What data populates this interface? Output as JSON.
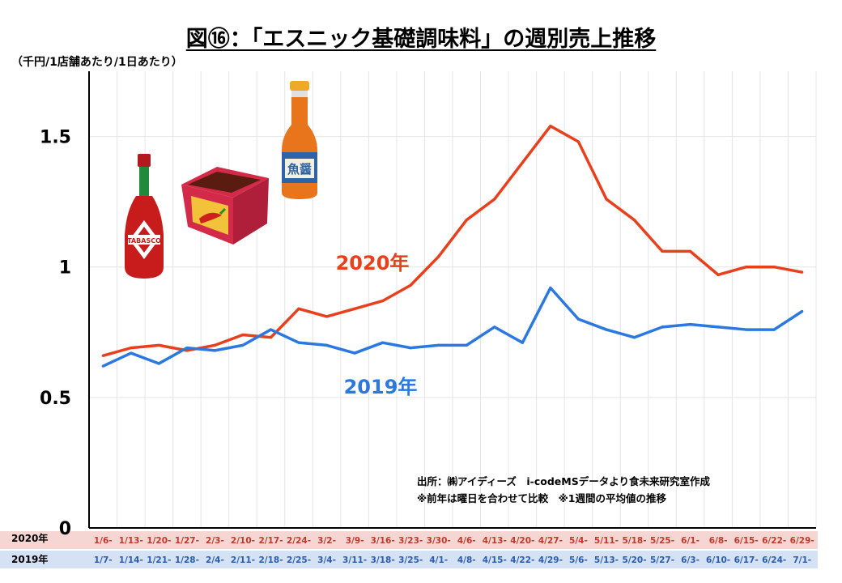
{
  "title": "図⑯：「エスニック基礎調味料」の週別売上推移",
  "unit_label": "（千円/1店舗あたり/1日あたり）",
  "source_note": "出所：㈱アイディーズ　i-codeMSデータより食未来研究室作成",
  "sub_note": "※前年は曜日を合わせて比較　※1週間の平均値の推移",
  "row_label_2020": "2020年",
  "row_label_2019": "2019年",
  "colors": {
    "series_2020": "#e8401c",
    "series_2019": "#2a78e0",
    "row_2020_bg": "#f6d6d3",
    "row_2019_bg": "#d5e1f5",
    "row_2020_text": "#c0392b",
    "row_2019_text": "#2a5db0"
  },
  "icons": [
    "tabasco-bottle-icon",
    "chili-paste-box-icon",
    "fish-sauce-bottle-icon"
  ],
  "chart_data": {
    "type": "line",
    "title": "図⑯：「エスニック基礎調味料」の週別売上推移",
    "ylabel": "（千円/1店舗あたり/1日あたり）",
    "ylim": [
      0,
      1.75
    ],
    "yticks": [
      0,
      0.5,
      1,
      1.5
    ],
    "ytick_labels": [
      "0",
      "0.5",
      "1",
      "1.5"
    ],
    "grid": true,
    "x_2020": [
      "1/6-",
      "1/13-",
      "1/20-",
      "1/27-",
      "2/3-",
      "2/10-",
      "2/17-",
      "2/24-",
      "3/2-",
      "3/9-",
      "3/16-",
      "3/23-",
      "3/30-",
      "4/6-",
      "4/13-",
      "4/20-",
      "4/27-",
      "5/4-",
      "5/11-",
      "5/18-",
      "5/25-",
      "6/1-",
      "6/8-",
      "6/15-",
      "6/22-",
      "6/29-"
    ],
    "x_2019": [
      "1/7-",
      "1/14-",
      "1/21-",
      "1/28-",
      "2/4-",
      "2/11-",
      "2/18-",
      "2/25-",
      "3/4-",
      "3/11-",
      "3/18-",
      "3/25-",
      "4/1-",
      "4/8-",
      "4/15-",
      "4/22-",
      "4/29-",
      "5/6-",
      "5/13-",
      "5/20-",
      "5/27-",
      "6/3-",
      "6/10-",
      "6/17-",
      "6/24-",
      "7/1-"
    ],
    "series": [
      {
        "name": "2020年",
        "color": "#e8401c",
        "values": [
          0.66,
          0.69,
          0.7,
          0.68,
          0.7,
          0.74,
          0.73,
          0.84,
          0.81,
          0.84,
          0.87,
          0.93,
          1.04,
          1.18,
          1.26,
          1.4,
          1.54,
          1.48,
          1.26,
          1.18,
          1.06,
          1.06,
          0.97,
          1.0,
          1.0,
          0.98
        ]
      },
      {
        "name": "2019年",
        "color": "#2a78e0",
        "values": [
          0.62,
          0.67,
          0.63,
          0.69,
          0.68,
          0.7,
          0.76,
          0.71,
          0.7,
          0.67,
          0.71,
          0.69,
          0.7,
          0.7,
          0.77,
          0.71,
          0.92,
          0.8,
          0.76,
          0.73,
          0.77,
          0.78,
          0.77,
          0.76,
          0.76,
          0.83
        ]
      }
    ]
  }
}
